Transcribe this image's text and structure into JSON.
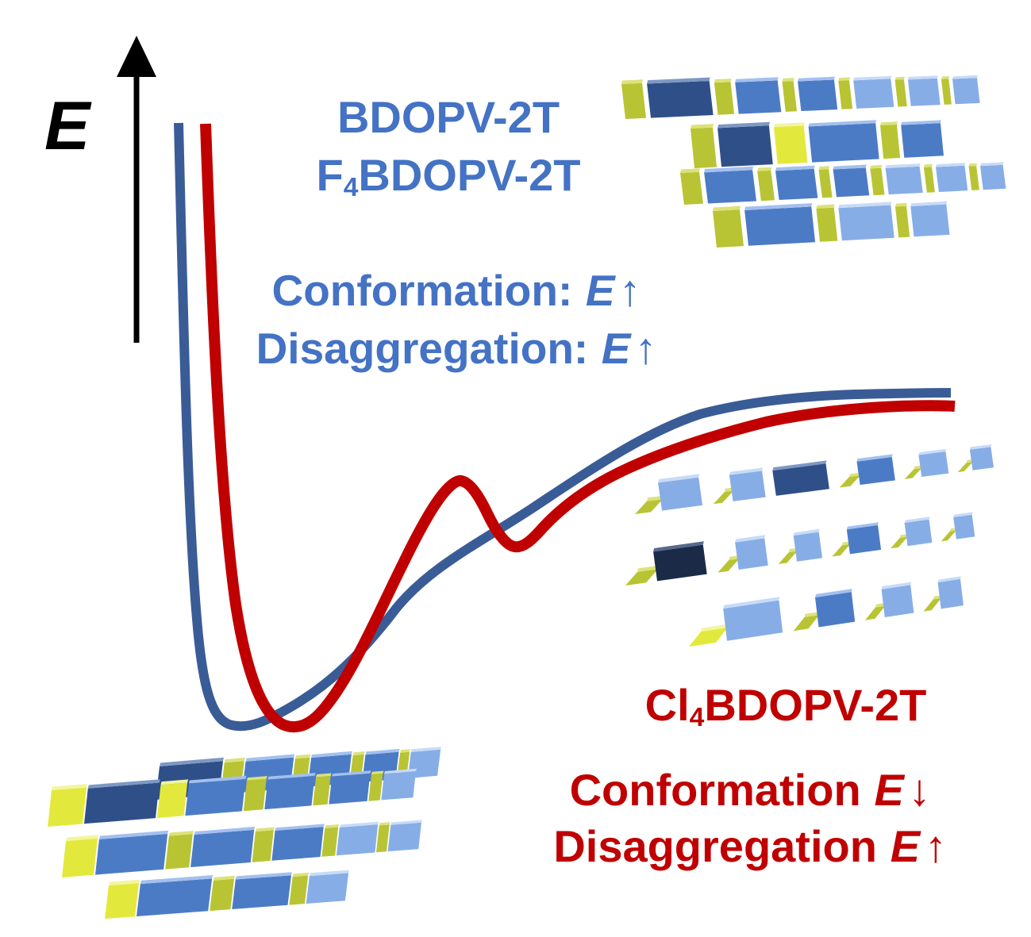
{
  "figure": {
    "background": "#FFFFFF",
    "axis": {
      "label": "E"
    },
    "curves": {
      "blue": {
        "label": "BDOPV-2T / F4BDOPV-2T energy curve",
        "color": "#3A5C96",
        "description": "steep wall, deep single minimum, smooth monotonic rise to upper plateau"
      },
      "red": {
        "label": "Cl4BDOPV-2T energy curve",
        "color": "#C00000",
        "description": "steep wall, deep minimum shifted right, local barrier bump and secondary dip, rise to plateau slightly below blue"
      }
    },
    "blue_group": {
      "color": "#4472C4",
      "title_line1": "BDOPV-2T",
      "title_line2": {
        "pre": "F",
        "sub": "4",
        "post": "BDOPV-2T"
      },
      "note_line1": {
        "text": "Conformation:",
        "e": "E",
        "arrow": "↑"
      },
      "note_line2": {
        "text": "Disaggregation:",
        "e": "E",
        "arrow": "↑"
      }
    },
    "red_group": {
      "color": "#C00000",
      "title": {
        "pre": "Cl",
        "sub": "4",
        "post": "BDOPV-2T"
      },
      "note_line1": {
        "text": "Conformation",
        "e": "E",
        "arrow": "↓"
      },
      "note_line2": {
        "text": "Disaggregation",
        "e": "E",
        "arrow": "↑"
      }
    },
    "palette": {
      "Y": {
        "f": "#B8C433",
        "t": "#DCE27A"
      },
      "B": {
        "f": "#E3E93C",
        "t": "#F2F5A0"
      },
      "L": {
        "f": "#87ADE6",
        "t": "#C7DBF8"
      },
      "M": {
        "f": "#4C7BC6",
        "t": "#A3C0EE"
      },
      "N": {
        "f": "#2F4F88",
        "t": "#7E98C4"
      },
      "D": {
        "f": "#1B2B47",
        "t": "#56698E"
      },
      "P": {
        "f": "#B3CFF2",
        "t": "#E0EDFC"
      }
    }
  }
}
